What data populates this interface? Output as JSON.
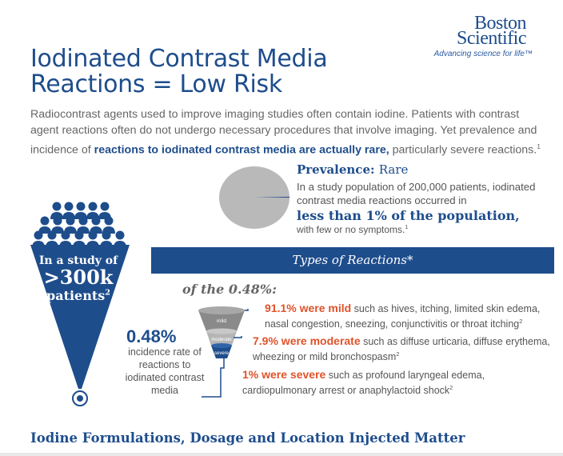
{
  "logo": {
    "line1": "Boston",
    "line2": "Scientific",
    "tagline": "Advancing science for life™"
  },
  "title": {
    "line1": "Iodinated Contrast Media",
    "line2": "Reactions = Low Risk"
  },
  "intro": {
    "part1": "Radiocontrast agents used to improve imaging studies often contain iodine. Patients with contrast agent reactions often do not undergo necessary procedures that involve imaging. Yet prevalence and incidence of ",
    "highlight": "reactions to iodinated contrast media are actually rare,",
    "part2": " particularly severe reactions.",
    "ref": "1"
  },
  "prevalence": {
    "heading": "Prevalence:",
    "rating": "Rare",
    "body": "In a study population of 200,000 patients, iodinated contrast media reactions occurred in",
    "big": "less than 1% of the population,",
    "tail": "with few or no symptoms.",
    "ref": "1",
    "pie_fraction": 0.0048
  },
  "study": {
    "line1": "In a study of",
    "line2": ">300k",
    "line3": "patients",
    "ref": "2"
  },
  "banner": "Types of Reactions*",
  "subset": "of the 0.48%:",
  "incidence": {
    "value": "0.48%",
    "desc": "incidence rate of reactions to iodinated contrast media"
  },
  "funnel_labels": {
    "mild": "mild",
    "moderate": "moderate",
    "severe": "severe"
  },
  "reactions": [
    {
      "highlight": "91.1% were mild",
      "text": " such as hives, itching, limited skin edema, nasal congestion, sneezing, conjunctivitis or throat itching",
      "ref": "2"
    },
    {
      "highlight": "7.9% were moderate",
      "text": " such as diffuse urticaria, diffuse erythema, wheezing or mild bronchospasm",
      "ref": "2"
    },
    {
      "highlight": "1% were severe",
      "text": " such as profound laryngeal edema, cardiopulmonary arrest or anaphylactoid shock",
      "ref": "2"
    }
  ],
  "footer": "Iodine Formulations, Dosage and Location Injected Matter",
  "colors": {
    "brand": "#1e4d8c",
    "accent": "#e0532a",
    "pie": "#b9b9b9"
  }
}
